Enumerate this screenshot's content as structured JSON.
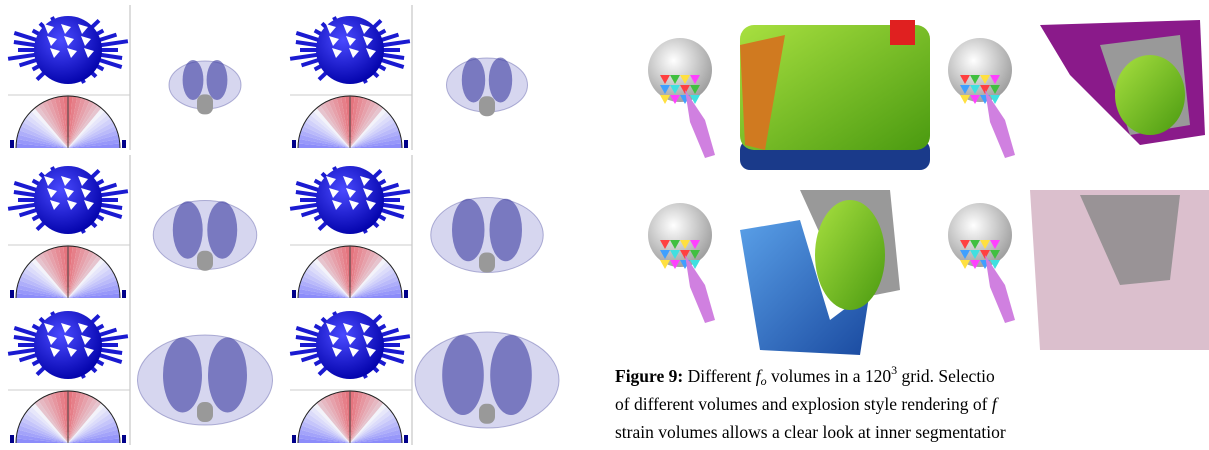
{
  "caption": {
    "label": "Figure 9:",
    "line1a": "Different",
    "symbol1": "f",
    "subscript1": "o",
    "line1b": "volumes in a 120",
    "superscript1": "3",
    "line1c": "grid. Selectio",
    "line2a": "of different volumes and explosion style rendering of",
    "symbol2": "f",
    "line3": "strain volumes allows a clear look at inner segmentatior"
  }
}
